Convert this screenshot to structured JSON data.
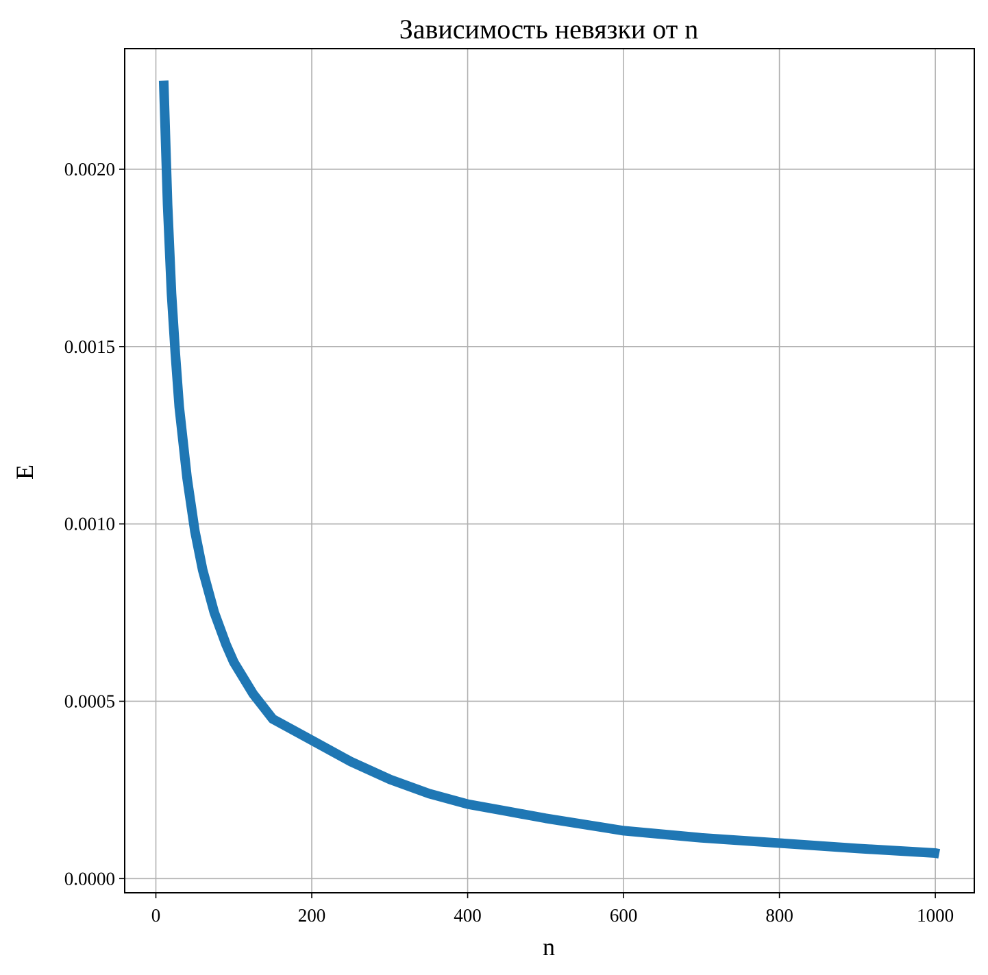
{
  "chart_data": {
    "type": "line",
    "title": "Зависимость невязки от n",
    "xlabel": "n",
    "ylabel": "E",
    "xlim": [
      -40,
      1050
    ],
    "ylim": [
      -4e-05,
      0.00234
    ],
    "grid": true,
    "legend": "none",
    "x_ticks": [
      {
        "value": 0,
        "label": "0"
      },
      {
        "value": 200,
        "label": "200"
      },
      {
        "value": 400,
        "label": "400"
      },
      {
        "value": 600,
        "label": "600"
      },
      {
        "value": 800,
        "label": "800"
      },
      {
        "value": 1000,
        "label": "1000"
      }
    ],
    "y_ticks": [
      {
        "value": 0.0,
        "label": "0.0000"
      },
      {
        "value": 0.0005,
        "label": "0.0005"
      },
      {
        "value": 0.001,
        "label": "0.0010"
      },
      {
        "value": 0.0015,
        "label": "0.0015"
      },
      {
        "value": 0.002,
        "label": "0.0020"
      }
    ],
    "series": [
      {
        "color": "#1f77b4",
        "x": [
          10,
          15,
          20,
          25,
          30,
          40,
          50,
          60,
          75,
          90,
          100,
          125,
          150,
          175,
          200,
          250,
          300,
          350,
          400,
          450,
          500,
          600,
          700,
          800,
          900,
          1000,
          1005
        ],
        "y": [
          0.00225,
          0.0019,
          0.00165,
          0.00148,
          0.00133,
          0.00113,
          0.00098,
          0.00087,
          0.00075,
          0.00066,
          0.00061,
          0.00052,
          0.00045,
          0.00042,
          0.00039,
          0.00033,
          0.00028,
          0.00024,
          0.00021,
          0.00019,
          0.00017,
          0.000135,
          0.000115,
          0.0001,
          8.5e-05,
          7.2e-05,
          7e-05
        ]
      }
    ]
  }
}
